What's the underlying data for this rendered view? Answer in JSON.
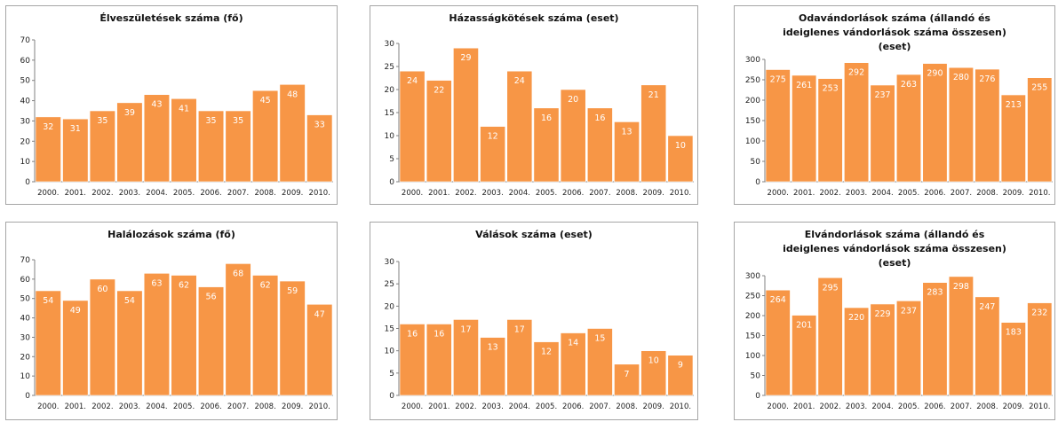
{
  "colors": {
    "bar": "#F79646",
    "bar_edge": "#ffffff",
    "grid": "#d9d9d9",
    "axis": "#808080"
  },
  "chart_data": [
    {
      "id": "births",
      "type": "bar",
      "title": "Élveszületések száma (fő)",
      "categories": [
        "2000.",
        "2001.",
        "2002.",
        "2003.",
        "2004.",
        "2005.",
        "2006.",
        "2007.",
        "2008.",
        "2009.",
        "2010."
      ],
      "values": [
        32,
        31,
        35,
        39,
        43,
        41,
        35,
        35,
        45,
        48,
        33
      ],
      "ylim": [
        0,
        70
      ],
      "yticks": [
        0,
        10,
        20,
        30,
        40,
        50,
        60,
        70
      ],
      "grid": false,
      "legend": "none"
    },
    {
      "id": "marriages",
      "type": "bar",
      "title": "Házasságkötések száma (eset)",
      "categories": [
        "2000.",
        "2001.",
        "2002.",
        "2003.",
        "2004.",
        "2005.",
        "2006.",
        "2007.",
        "2008.",
        "2009.",
        "2010."
      ],
      "values": [
        24,
        22,
        29,
        12,
        24,
        16,
        20,
        16,
        13,
        21,
        10
      ],
      "ylim": [
        0,
        30
      ],
      "yticks": [
        0,
        5,
        10,
        15,
        20,
        25,
        30
      ],
      "grid": false,
      "legend": "none"
    },
    {
      "id": "emigration",
      "type": "bar",
      "title": "Odavándorlások száma (állandó és ideiglenes vándorlások száma összesen) (eset)",
      "categories": [
        "2000.",
        "2001.",
        "2002.",
        "2003.",
        "2004.",
        "2005.",
        "2006.",
        "2007.",
        "2008.",
        "2009.",
        "2010."
      ],
      "values": [
        275,
        261,
        253,
        292,
        237,
        263,
        290,
        280,
        276,
        213,
        255
      ],
      "ylim": [
        0,
        300
      ],
      "yticks": [
        0,
        50,
        100,
        150,
        200,
        250,
        300
      ],
      "grid": false,
      "legend": "none"
    },
    {
      "id": "deaths",
      "type": "bar",
      "title": "Halálozások száma (fő)",
      "categories": [
        "2000.",
        "2001.",
        "2002.",
        "2003.",
        "2004.",
        "2005.",
        "2006.",
        "2007.",
        "2008.",
        "2009.",
        "2010."
      ],
      "values": [
        54,
        49,
        60,
        54,
        63,
        62,
        56,
        68,
        62,
        59,
        47
      ],
      "ylim": [
        0,
        70
      ],
      "yticks": [
        0,
        10,
        20,
        30,
        40,
        50,
        60,
        70
      ],
      "grid": false,
      "legend": "none"
    },
    {
      "id": "divorces",
      "type": "bar",
      "title": "Válások száma (eset)",
      "categories": [
        "2000.",
        "2001.",
        "2002.",
        "2003.",
        "2004.",
        "2005.",
        "2006.",
        "2007.",
        "2008.",
        "2009.",
        "2010."
      ],
      "values": [
        16,
        16,
        17,
        13,
        17,
        12,
        14,
        15,
        7,
        10,
        9
      ],
      "ylim": [
        0,
        30
      ],
      "yticks": [
        0,
        5,
        10,
        15,
        20,
        25,
        30
      ],
      "grid": false,
      "legend": "none"
    },
    {
      "id": "outmigration",
      "type": "bar",
      "title": "Elvándorlások száma (állandó és ideiglenes vándorlások száma összesen) (eset)",
      "categories": [
        "2000.",
        "2001.",
        "2002.",
        "2003.",
        "2004.",
        "2005.",
        "2006.",
        "2007.",
        "2008.",
        "2009.",
        "2010."
      ],
      "values": [
        264,
        201,
        295,
        220,
        229,
        237,
        283,
        298,
        247,
        183,
        232
      ],
      "ylim": [
        0,
        300
      ],
      "yticks": [
        0,
        50,
        100,
        150,
        200,
        250,
        300
      ],
      "grid": false,
      "legend": "none"
    }
  ]
}
